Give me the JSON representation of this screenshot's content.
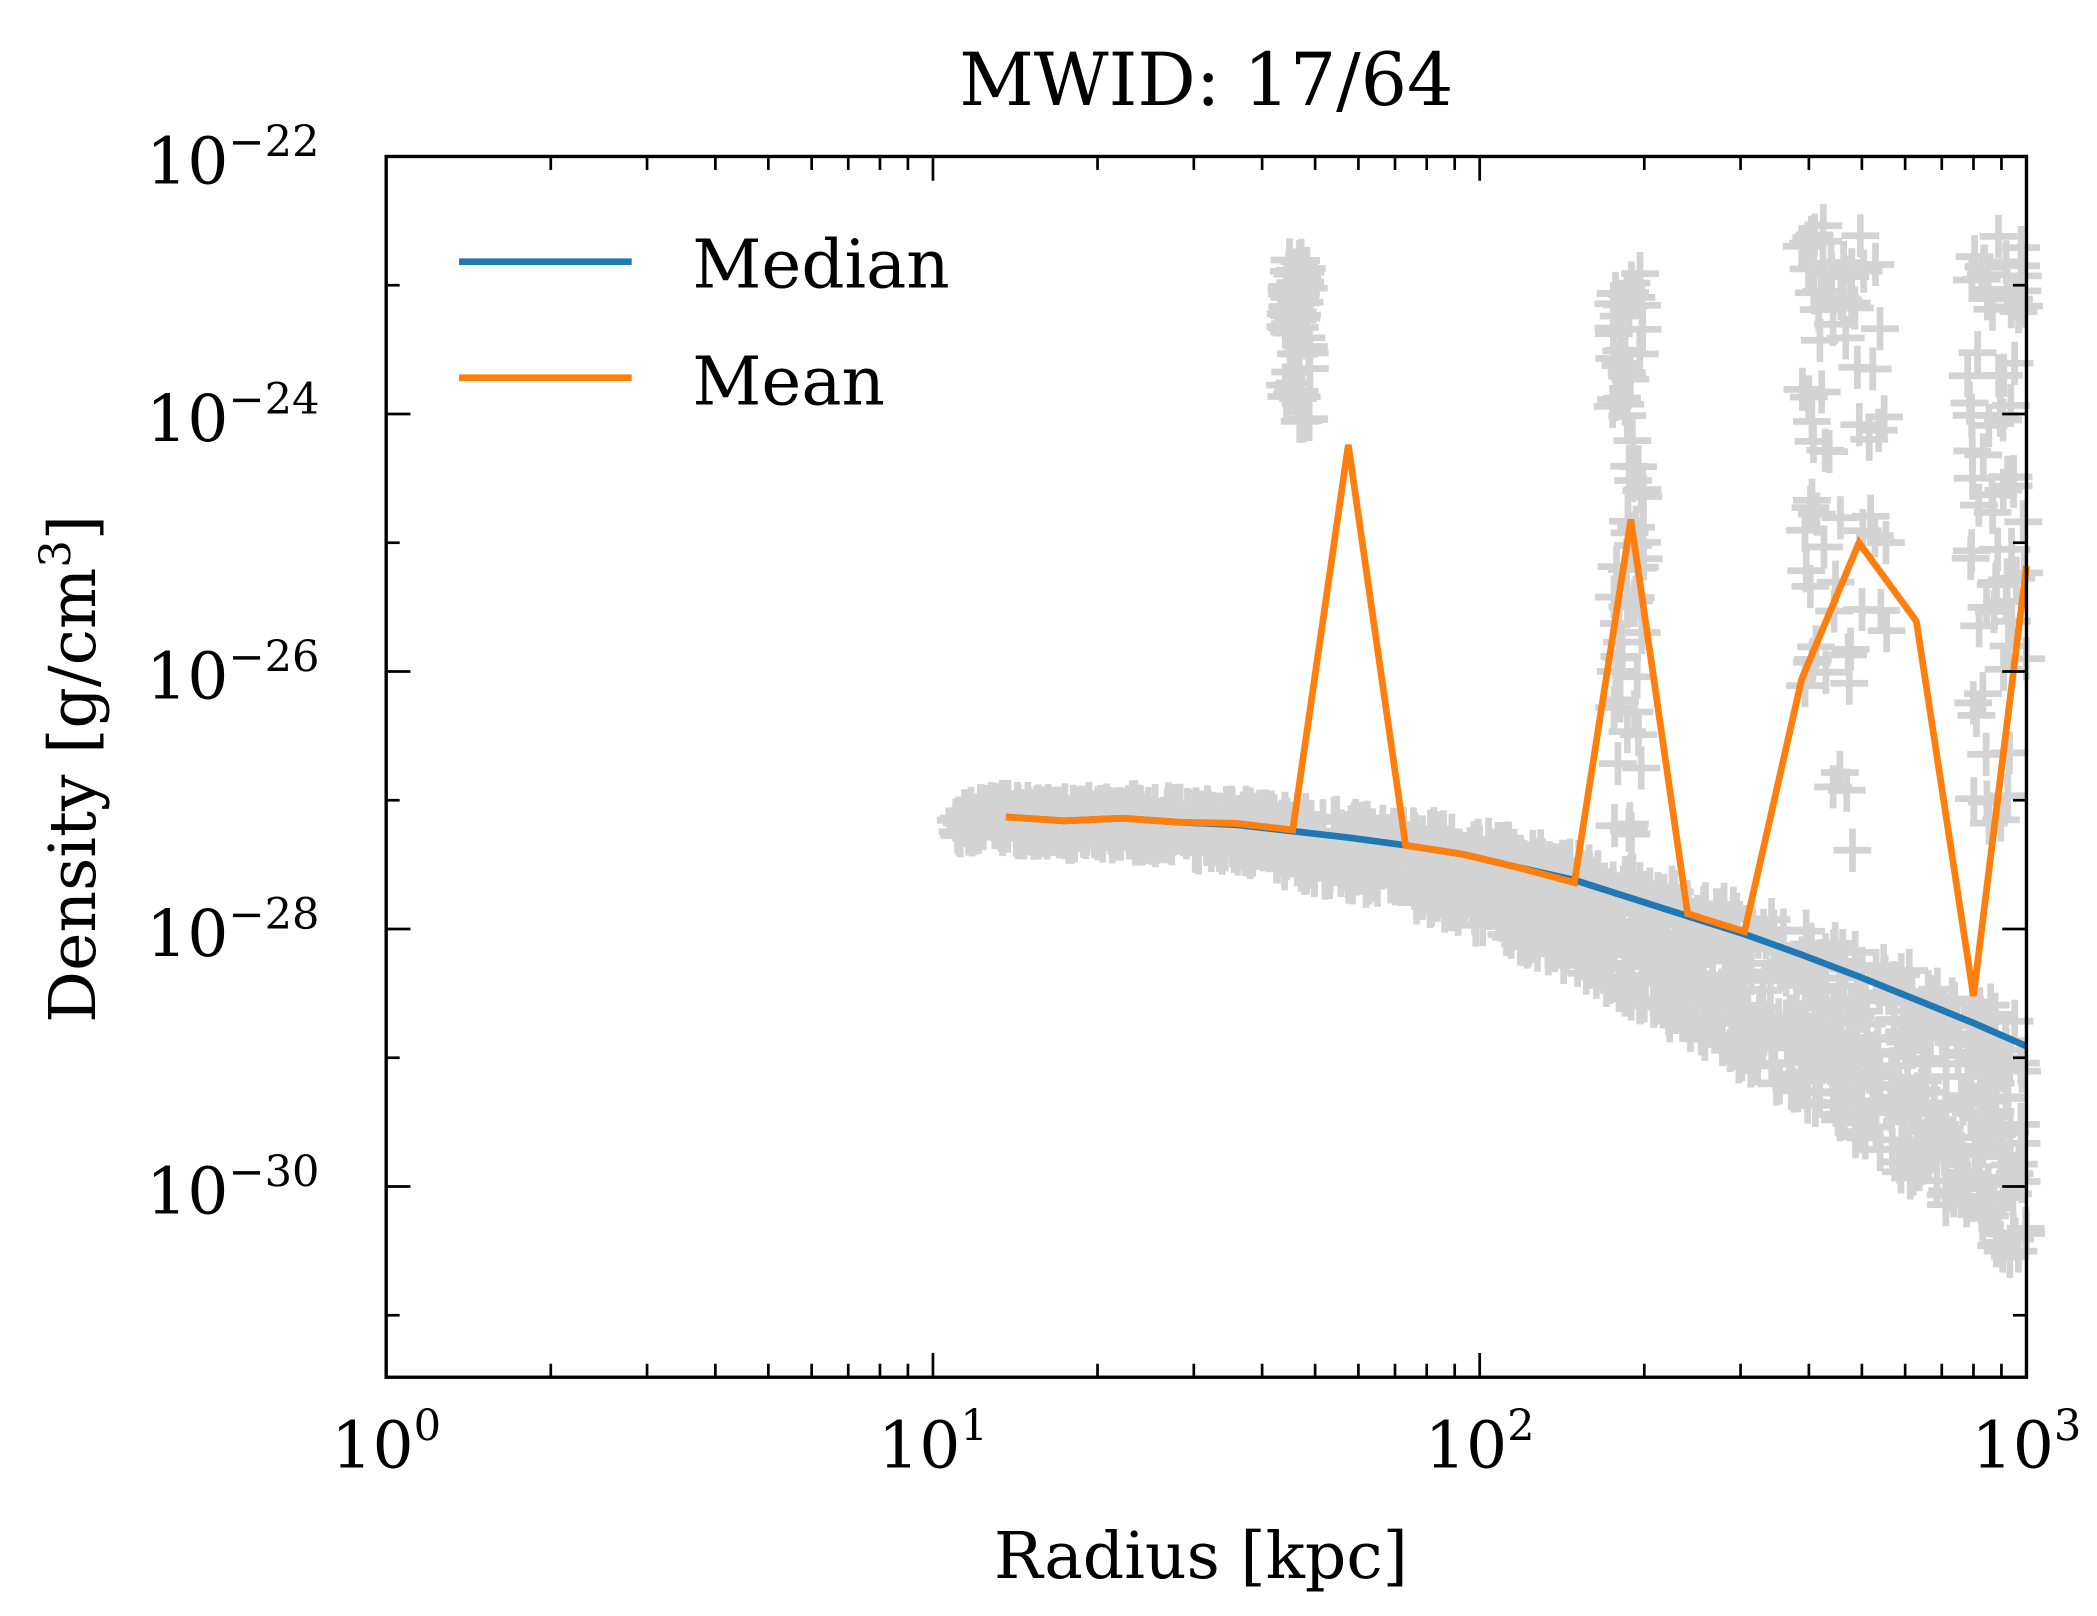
{
  "chart_data": {
    "type": "line",
    "title": "MWID: 17/64",
    "xlabel": "Radius [kpc]",
    "ylabel": "Density [g/cm³]",
    "ylabel_main": "Density [g/cm",
    "ylabel_sup": "3",
    "ylabel_end": "]",
    "xscale": "log",
    "yscale": "log",
    "xlim": [
      1,
      1000
    ],
    "ylim": [
      3.3e-32,
      1e-22
    ],
    "grid": false,
    "legend_position": "top-left",
    "x_ticks": [
      {
        "base": "10",
        "exp": "0",
        "value": 1
      },
      {
        "base": "10",
        "exp": "1",
        "value": 10
      },
      {
        "base": "10",
        "exp": "2",
        "value": 100
      },
      {
        "base": "10",
        "exp": "3",
        "value": 1000
      }
    ],
    "y_ticks": [
      {
        "base": "10",
        "exp": "−22",
        "value": -22
      },
      {
        "base": "10",
        "exp": "−24",
        "value": -24
      },
      {
        "base": "10",
        "exp": "−26",
        "value": -26
      },
      {
        "base": "10",
        "exp": "−28",
        "value": -28
      },
      {
        "base": "10",
        "exp": "−30",
        "value": -30
      }
    ],
    "x": [
      13.6,
      17.4,
      22.2,
      28.0,
      35.8,
      45.5,
      57.5,
      73.2,
      93.3,
      117,
      149,
      189,
      240,
      305,
      388,
      494,
      629,
      800,
      1000
    ],
    "series": [
      {
        "name": "Median",
        "color": "#1f77b4",
        "log10_values": [
          -27.13,
          -27.16,
          -27.14,
          -27.17,
          -27.19,
          -27.24,
          -27.29,
          -27.35,
          -27.42,
          -27.52,
          -27.62,
          -27.76,
          -27.9,
          -28.04,
          -28.2,
          -28.37,
          -28.55,
          -28.73,
          -28.91
        ]
      },
      {
        "name": "Mean",
        "color": "#ff7f0e",
        "log10_values": [
          -27.13,
          -27.16,
          -27.14,
          -27.17,
          -27.18,
          -27.23,
          -24.24,
          -27.35,
          -27.42,
          -27.52,
          -27.64,
          -24.82,
          -27.88,
          -28.02,
          -26.06,
          -25.0,
          -25.61,
          -28.52,
          -25.18
        ]
      }
    ],
    "scatter": {
      "marker": "+",
      "color": "#d3d3d3",
      "band_r_range": [
        11,
        1000
      ],
      "clusters": [
        {
          "r": [
            44,
            49
          ],
          "log10_density": [
            -22.8,
            -24.1
          ]
        },
        {
          "r": [
            175,
            200
          ],
          "log10_density": [
            -22.9,
            -27.6
          ]
        },
        {
          "r": [
            380,
            560
          ],
          "log10_density": [
            -22.5,
            -27.6
          ]
        },
        {
          "r": [
            780,
            1000
          ],
          "log10_density": [
            -22.6,
            -27.8
          ]
        }
      ]
    }
  }
}
